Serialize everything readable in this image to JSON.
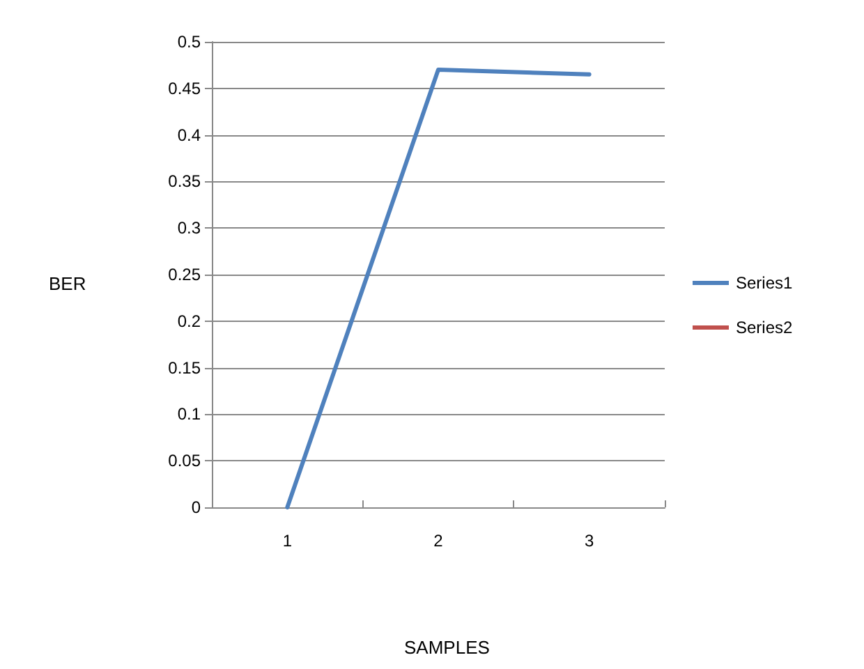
{
  "chart_data": {
    "type": "line",
    "annotations": [
      "BER",
      "SAMPLES"
    ],
    "categories": [
      "1",
      "2",
      "3"
    ],
    "series": [
      {
        "name": "Series1",
        "color": "#4f81bd",
        "values": [
          0,
          0.47,
          0.465
        ]
      },
      {
        "name": "Series2",
        "color": "#c0504d",
        "values": [
          null,
          null,
          null
        ]
      }
    ],
    "ylim": [
      0,
      0.5
    ],
    "yticks": [
      0,
      0.05,
      0.1,
      0.15,
      0.2,
      0.25,
      0.3,
      0.35,
      0.4,
      0.45,
      0.5
    ],
    "grid": "y",
    "legend": "right",
    "marker": "none",
    "line_style": "solid"
  }
}
